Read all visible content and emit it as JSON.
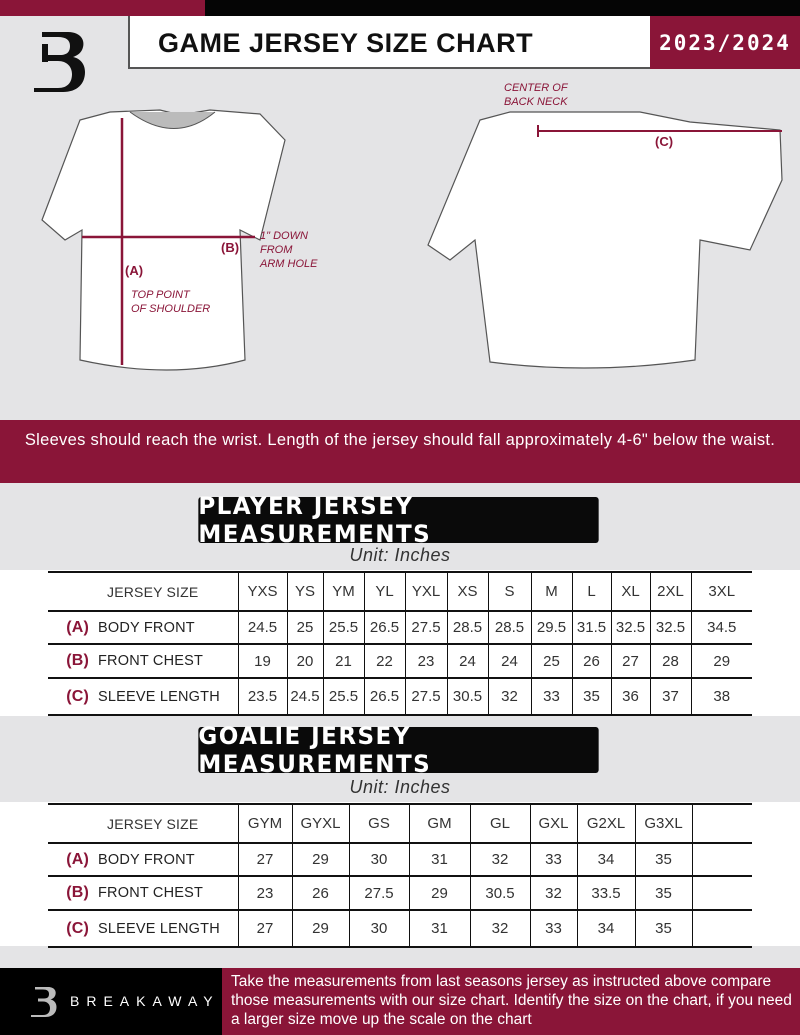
{
  "header": {
    "title": "GAME JERSEY SIZE CHART",
    "season": "2023/2024"
  },
  "diagram": {
    "front_labels": {
      "a": "(A)",
      "a_text": "TOP POINT\nOF SHOULDER",
      "b": "(B)",
      "b_text": "1\" DOWN\nFROM\nARM HOLE"
    },
    "back_labels": {
      "neck": "CENTER OF\nBACK NECK",
      "c": "(C)"
    }
  },
  "notice": "Sleeves should reach the wrist. Length of the jersey should fall approximately 4-6\" below the waist.",
  "player": {
    "heading": "PLAYER JERSEY MEASUREMENTS",
    "unit": "Unit: Inches",
    "size_label": "JERSEY SIZE",
    "sizes": [
      "YXS",
      "YS",
      "YM",
      "YL",
      "YXL",
      "XS",
      "S",
      "M",
      "L",
      "XL",
      "2XL",
      "3XL"
    ],
    "rows": [
      {
        "key": "(A)",
        "label": "BODY FRONT",
        "values": [
          "24.5",
          "25",
          "25.5",
          "26.5",
          "27.5",
          "28.5",
          "28.5",
          "29.5",
          "31.5",
          "32.5",
          "32.5",
          "34.5"
        ]
      },
      {
        "key": "(B)",
        "label": "FRONT CHEST",
        "values": [
          "19",
          "20",
          "21",
          "22",
          "23",
          "24",
          "24",
          "25",
          "26",
          "27",
          "28",
          "29"
        ]
      },
      {
        "key": "(C)",
        "label": "SLEEVE LENGTH",
        "values": [
          "23.5",
          "24.5",
          "25.5",
          "26.5",
          "27.5",
          "30.5",
          "32",
          "33",
          "35",
          "36",
          "37",
          "38"
        ]
      }
    ]
  },
  "goalie": {
    "heading": "GOALIE JERSEY MEASUREMENTS",
    "unit": "Unit: Inches",
    "size_label": "JERSEY SIZE",
    "sizes": [
      "GYM",
      "GYXL",
      "GS",
      "GM",
      "GL",
      "GXL",
      "G2XL",
      "G3XL",
      ""
    ],
    "rows": [
      {
        "key": "(A)",
        "label": "BODY FRONT",
        "values": [
          "27",
          "29",
          "30",
          "31",
          "32",
          "33",
          "34",
          "35",
          ""
        ]
      },
      {
        "key": "(B)",
        "label": "FRONT CHEST",
        "values": [
          "23",
          "26",
          "27.5",
          "29",
          "30.5",
          "32",
          "33.5",
          "35",
          ""
        ]
      },
      {
        "key": "(C)",
        "label": "SLEEVE LENGTH",
        "values": [
          "27",
          "29",
          "30",
          "31",
          "32",
          "33",
          "34",
          "35",
          ""
        ]
      }
    ]
  },
  "footer": {
    "brand": "BREAKAWAY",
    "text": "Take the measurements from last seasons jersey as instructed above compare those measurements  with our size chart. Identify the size on the chart, if you need a larger size move up the scale on the chart"
  },
  "colors": {
    "accent": "#8a1538",
    "dark": "#050505",
    "background": "#e4e4e6"
  }
}
